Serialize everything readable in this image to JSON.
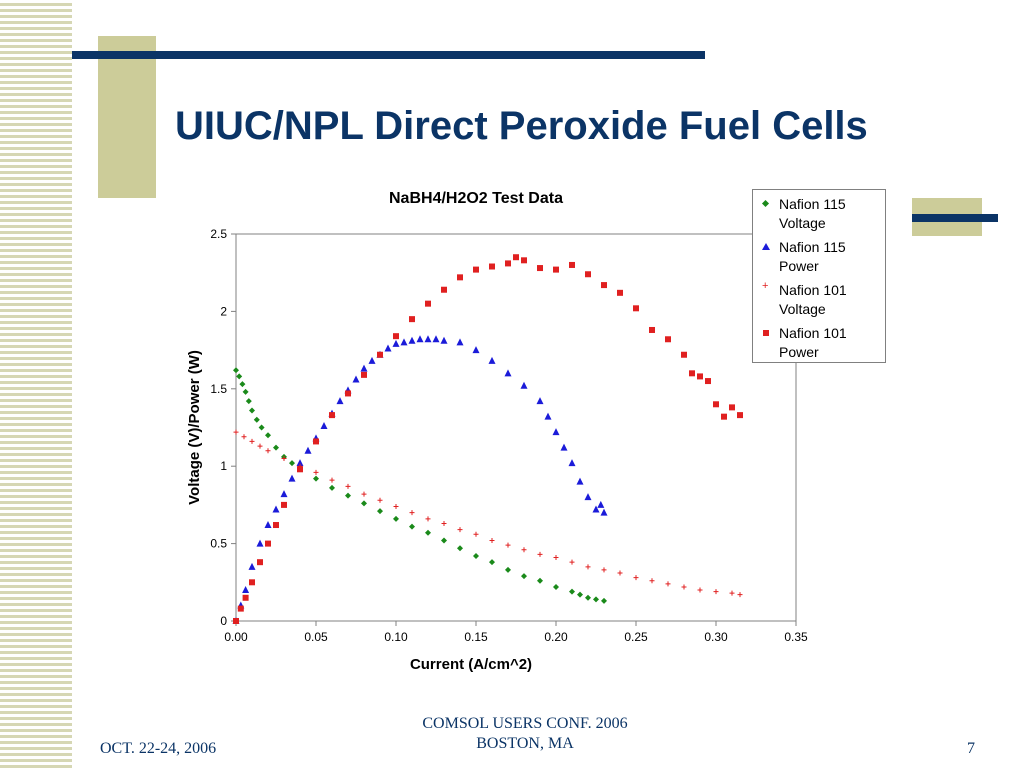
{
  "slide": {
    "title": "UIUC/NPL Direct Peroxide Fuel Cells",
    "footer_left": "OCT. 22-24, 2006",
    "footer_center_line1": "COMSOL USERS CONF. 2006",
    "footer_center_line2": "BOSTON, MA",
    "page_number": "7",
    "colors": {
      "title": "#0b3466",
      "accent_square": "#cccc99",
      "accent_bar": "#0b3466"
    }
  },
  "chart_data": {
    "type": "scatter",
    "title": "NaBH4/H2O2 Test Data",
    "xlabel": "Current (A/cm^2)",
    "ylabel": "Voltage (V)/Power (W)",
    "xlim": [
      0,
      0.35
    ],
    "ylim": [
      0,
      2.5
    ],
    "xticks": [
      "0.00",
      "0.05",
      "0.10",
      "0.15",
      "0.20",
      "0.25",
      "0.30",
      "0.35"
    ],
    "yticks": [
      "0",
      "0.5",
      "1",
      "1.5",
      "2",
      "2.5"
    ],
    "grid": false,
    "legend_position": "top-right",
    "series": [
      {
        "name": "Nafion 115 Voltage",
        "marker": "diamond",
        "color": "#1a8a1a",
        "x": [
          0.0,
          0.002,
          0.004,
          0.006,
          0.008,
          0.01,
          0.013,
          0.016,
          0.02,
          0.025,
          0.03,
          0.035,
          0.04,
          0.05,
          0.06,
          0.07,
          0.08,
          0.09,
          0.1,
          0.11,
          0.12,
          0.13,
          0.14,
          0.15,
          0.16,
          0.17,
          0.18,
          0.19,
          0.2,
          0.21,
          0.215,
          0.22,
          0.225,
          0.23
        ],
        "y": [
          1.62,
          1.58,
          1.53,
          1.48,
          1.42,
          1.36,
          1.3,
          1.25,
          1.2,
          1.12,
          1.06,
          1.02,
          0.99,
          0.92,
          0.86,
          0.81,
          0.76,
          0.71,
          0.66,
          0.61,
          0.57,
          0.52,
          0.47,
          0.42,
          0.38,
          0.33,
          0.29,
          0.26,
          0.22,
          0.19,
          0.17,
          0.15,
          0.14,
          0.13
        ]
      },
      {
        "name": "Nafion 115 Power",
        "marker": "triangle",
        "color": "#1b1bd9",
        "x": [
          0.0,
          0.003,
          0.006,
          0.01,
          0.015,
          0.02,
          0.025,
          0.03,
          0.035,
          0.04,
          0.045,
          0.05,
          0.055,
          0.06,
          0.065,
          0.07,
          0.075,
          0.08,
          0.085,
          0.09,
          0.095,
          0.1,
          0.105,
          0.11,
          0.115,
          0.12,
          0.125,
          0.13,
          0.14,
          0.15,
          0.16,
          0.17,
          0.18,
          0.19,
          0.195,
          0.2,
          0.205,
          0.21,
          0.215,
          0.22,
          0.225,
          0.228,
          0.23
        ],
        "y": [
          0.0,
          0.1,
          0.2,
          0.35,
          0.5,
          0.62,
          0.72,
          0.82,
          0.92,
          1.02,
          1.1,
          1.18,
          1.26,
          1.34,
          1.42,
          1.49,
          1.56,
          1.63,
          1.68,
          1.72,
          1.76,
          1.79,
          1.8,
          1.81,
          1.82,
          1.82,
          1.82,
          1.81,
          1.8,
          1.75,
          1.68,
          1.6,
          1.52,
          1.42,
          1.32,
          1.22,
          1.12,
          1.02,
          0.9,
          0.8,
          0.72,
          0.75,
          0.7
        ]
      },
      {
        "name": "Nafion 101 Voltage",
        "marker": "plus",
        "color": "#e02020",
        "x": [
          0.0,
          0.005,
          0.01,
          0.015,
          0.02,
          0.03,
          0.04,
          0.05,
          0.06,
          0.07,
          0.08,
          0.09,
          0.1,
          0.11,
          0.12,
          0.13,
          0.14,
          0.15,
          0.16,
          0.17,
          0.18,
          0.19,
          0.2,
          0.21,
          0.22,
          0.23,
          0.24,
          0.25,
          0.26,
          0.27,
          0.28,
          0.29,
          0.3,
          0.31,
          0.315
        ],
        "y": [
          1.22,
          1.19,
          1.16,
          1.13,
          1.1,
          1.05,
          1.0,
          0.96,
          0.91,
          0.87,
          0.82,
          0.78,
          0.74,
          0.7,
          0.66,
          0.63,
          0.59,
          0.56,
          0.52,
          0.49,
          0.46,
          0.43,
          0.41,
          0.38,
          0.35,
          0.33,
          0.31,
          0.28,
          0.26,
          0.24,
          0.22,
          0.2,
          0.19,
          0.18,
          0.17
        ]
      },
      {
        "name": "Nafion 101 Power",
        "marker": "square",
        "color": "#e02020",
        "x": [
          0.0,
          0.003,
          0.006,
          0.01,
          0.015,
          0.02,
          0.025,
          0.03,
          0.04,
          0.05,
          0.06,
          0.07,
          0.08,
          0.09,
          0.1,
          0.11,
          0.12,
          0.13,
          0.14,
          0.15,
          0.16,
          0.17,
          0.175,
          0.18,
          0.19,
          0.2,
          0.21,
          0.22,
          0.23,
          0.24,
          0.25,
          0.26,
          0.27,
          0.28,
          0.285,
          0.29,
          0.295,
          0.3,
          0.305,
          0.31,
          0.315
        ],
        "y": [
          0.0,
          0.08,
          0.15,
          0.25,
          0.38,
          0.5,
          0.62,
          0.75,
          0.98,
          1.16,
          1.33,
          1.47,
          1.59,
          1.72,
          1.84,
          1.95,
          2.05,
          2.14,
          2.22,
          2.27,
          2.29,
          2.31,
          2.35,
          2.33,
          2.28,
          2.27,
          2.3,
          2.24,
          2.17,
          2.12,
          2.02,
          1.88,
          1.82,
          1.72,
          1.6,
          1.58,
          1.55,
          1.4,
          1.32,
          1.38,
          1.33
        ]
      }
    ]
  }
}
